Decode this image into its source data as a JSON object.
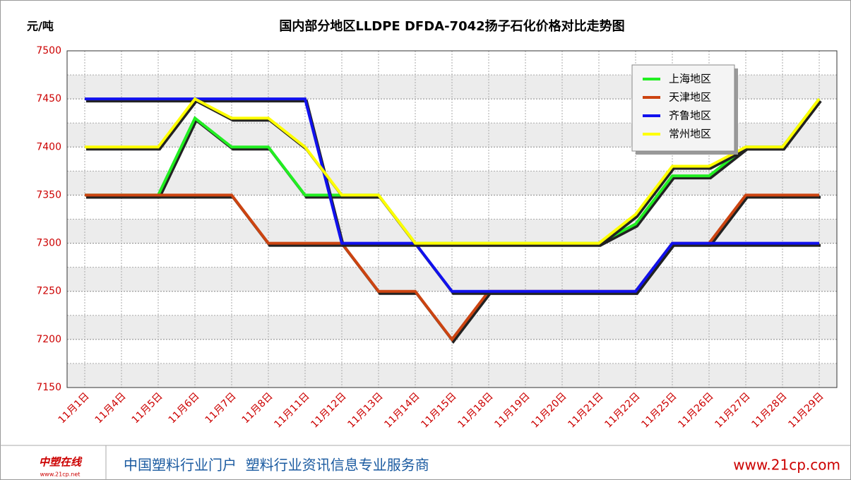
{
  "chart_data": {
    "type": "line",
    "title": "国内部分地区LLDPE DFDA-7042扬子石化价格对比走势图",
    "y_label": "元/吨",
    "categories": [
      "11月1日",
      "11月4日",
      "11月5日",
      "11月6日",
      "11月7日",
      "11月8日",
      "11月11日",
      "11月12日",
      "11月13日",
      "11月14日",
      "11月15日",
      "11月18日",
      "11月19日",
      "11月20日",
      "11月21日",
      "11月22日",
      "11月25日",
      "11月26日",
      "11月27日",
      "11月28日",
      "11月29日"
    ],
    "series": [
      {
        "name": "上海地区",
        "color": "#22ee22",
        "values": [
          7350,
          7350,
          7350,
          7430,
          7400,
          7400,
          7350,
          7350,
          7350,
          7300,
          7300,
          7300,
          7300,
          7300,
          7300,
          7320,
          7370,
          7370,
          7400,
          7400,
          7450
        ]
      },
      {
        "name": "天津地区",
        "color": "#cc4411",
        "values": [
          7350,
          7350,
          7350,
          7350,
          7350,
          7300,
          7300,
          7300,
          7250,
          7250,
          7200,
          7250,
          7250,
          7250,
          7250,
          7250,
          7300,
          7300,
          7350,
          7350,
          7350
        ]
      },
      {
        "name": "齐鲁地区",
        "color": "#1111ee",
        "values": [
          7450,
          7450,
          7450,
          7450,
          7450,
          7450,
          7450,
          7300,
          7300,
          7300,
          7250,
          7250,
          7250,
          7250,
          7250,
          7250,
          7300,
          7300,
          7300,
          7300,
          7300
        ]
      },
      {
        "name": "常州地区",
        "color": "#ffff00",
        "values": [
          7400,
          7400,
          7400,
          7450,
          7430,
          7430,
          7400,
          7350,
          7350,
          7300,
          7300,
          7300,
          7300,
          7300,
          7300,
          7330,
          7380,
          7380,
          7400,
          7400,
          7450
        ]
      }
    ],
    "ylim": [
      7150,
      7500
    ],
    "yticks": [
      7150,
      7200,
      7250,
      7300,
      7350,
      7400,
      7450,
      7500
    ],
    "grid": true,
    "legend": "top-right"
  },
  "footer": {
    "logo": "中塑在线",
    "logo_url": "www.21cp.net",
    "slogan": "中国塑料行业门户  塑料行业资讯信息专业服务商",
    "url": "www.21cp.com"
  }
}
